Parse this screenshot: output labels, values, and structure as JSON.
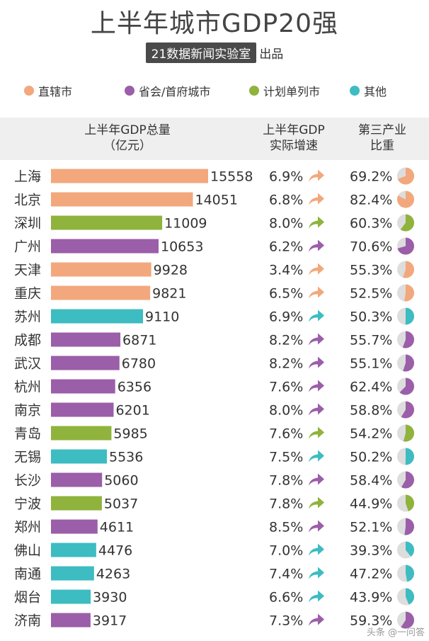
{
  "title": "上半年城市GDP20强",
  "subtitle": {
    "badge": "21数据新闻实验室",
    "tail": "出品"
  },
  "legend": [
    {
      "label": "直辖市",
      "color": "#f2a87c"
    },
    {
      "label": "省会/首府城市",
      "color": "#9b5ea8"
    },
    {
      "label": "计划单列市",
      "color": "#8fb33c"
    },
    {
      "label": "其他",
      "color": "#3dbcc2"
    }
  ],
  "headers": {
    "gdp_line1": "上半年GDP总量",
    "gdp_line2": "（亿元）",
    "growth_line1": "上半年GDP",
    "growth_line2": "实际增速",
    "tertiary_line1": "第三产业",
    "tertiary_line2": "比重"
  },
  "chart_data": {
    "type": "bar",
    "categories": [
      "上海",
      "北京",
      "深圳",
      "广州",
      "天津",
      "重庆",
      "苏州",
      "成都",
      "武汉",
      "杭州",
      "南京",
      "青岛",
      "无锡",
      "长沙",
      "宁波",
      "郑州",
      "佛山",
      "南通",
      "烟台",
      "济南"
    ],
    "city_type": [
      "直辖市",
      "直辖市",
      "计划单列市",
      "省会/首府城市",
      "直辖市",
      "直辖市",
      "其他",
      "省会/首府城市",
      "省会/首府城市",
      "省会/首府城市",
      "省会/首府城市",
      "计划单列市",
      "其他",
      "省会/首府城市",
      "计划单列市",
      "省会/首府城市",
      "其他",
      "其他",
      "其他",
      "省会/首府城市"
    ],
    "values": [
      15558,
      14051,
      11009,
      10653,
      9928,
      9821,
      9110,
      6871,
      6780,
      6356,
      6201,
      5985,
      5536,
      5060,
      5037,
      4611,
      4476,
      4263,
      3930,
      3917
    ],
    "growth": [
      "6.9%",
      "6.8%",
      "8.0%",
      "6.2%",
      "3.4%",
      "6.5%",
      "6.9%",
      "8.2%",
      "8.2%",
      "7.6%",
      "8.0%",
      "7.6%",
      "7.5%",
      "7.8%",
      "7.8%",
      "8.5%",
      "7.0%",
      "7.4%",
      "6.6%",
      "7.3%"
    ],
    "tertiary": [
      "69.2%",
      "82.4%",
      "60.3%",
      "70.6%",
      "55.3%",
      "52.5%",
      "50.3%",
      "55.7%",
      "55.1%",
      "62.4%",
      "58.8%",
      "54.2%",
      "50.2%",
      "58.4%",
      "44.9%",
      "52.1%",
      "39.3%",
      "47.2%",
      "43.9%",
      "59.3%"
    ]
  },
  "footer": "头条 @一问答"
}
